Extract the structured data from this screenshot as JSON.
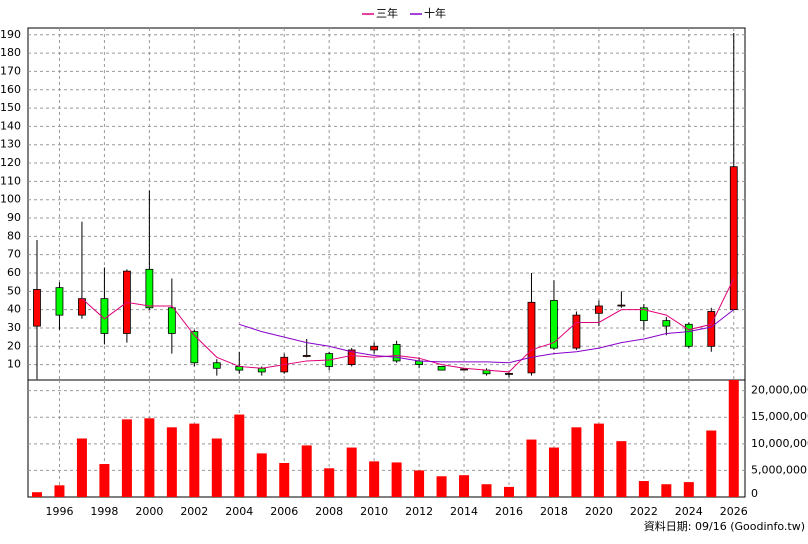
{
  "chart_data": [
    {
      "type": "candlestick",
      "x": [
        1995,
        1996,
        1997,
        1998,
        1999,
        2000,
        2001,
        2002,
        2003,
        2004,
        2005,
        2006,
        2007,
        2008,
        2009,
        2010,
        2011,
        2012,
        2013,
        2014,
        2015,
        2016,
        2017,
        2018,
        2019,
        2020,
        2021,
        2022,
        2023,
        2024,
        2025,
        2026
      ],
      "open": [
        31,
        52,
        37,
        46,
        27,
        62,
        41,
        28,
        11,
        9,
        8,
        6,
        14.5,
        16,
        10,
        18,
        21,
        12,
        9,
        7.5,
        7,
        5,
        5.5,
        45,
        19,
        38,
        42,
        41,
        34,
        32,
        20,
        40
      ],
      "high": [
        78,
        55,
        88,
        63,
        62,
        105,
        57,
        29,
        13,
        17,
        9,
        16,
        24,
        17,
        19,
        22,
        23,
        14,
        9,
        8,
        8,
        6,
        60,
        56,
        39,
        45,
        50,
        43,
        36,
        33,
        41,
        191
      ],
      "low": [
        2,
        29,
        35,
        21,
        22,
        40,
        16,
        9,
        4,
        5,
        4,
        5,
        14,
        7,
        9,
        16,
        11,
        8,
        7,
        7,
        4,
        3,
        4,
        18,
        18,
        31,
        41,
        29,
        26,
        19,
        17,
        40
      ],
      "close": [
        51,
        37,
        46,
        27,
        61,
        41,
        27,
        11,
        8,
        7,
        6,
        14,
        15,
        9,
        18,
        20,
        12,
        10,
        7,
        7.6,
        5,
        5.2,
        44,
        19,
        37,
        42,
        42.5,
        34,
        31,
        20,
        39,
        118
      ],
      "up_color": "#ff0000",
      "down_color": "#00ff00",
      "series": [
        {
          "name": "三年",
          "color": "#e0007a",
          "values": [
            null,
            null,
            46,
            35,
            44,
            42,
            42,
            26,
            14,
            9,
            8,
            10,
            12,
            12.5,
            15,
            14,
            15,
            13.5,
            10,
            8,
            7,
            6,
            18,
            22,
            33,
            33,
            40,
            40,
            37,
            29,
            32,
            57
          ]
        },
        {
          "name": "十年",
          "color": "#8800cc",
          "values": [
            null,
            null,
            null,
            null,
            null,
            null,
            null,
            null,
            null,
            32,
            28,
            25,
            22,
            20,
            17,
            15,
            14,
            12,
            11.5,
            11.5,
            11.5,
            11,
            14,
            16,
            17,
            19,
            22,
            24,
            27,
            28,
            30.5,
            40
          ]
        }
      ],
      "xlim": [
        1994.6,
        2026.5
      ],
      "xticks": [
        1996,
        1998,
        2000,
        2002,
        2004,
        2006,
        2008,
        2010,
        2012,
        2014,
        2016,
        2018,
        2020,
        2022,
        2024,
        2026
      ],
      "ylim": [
        1.6,
        193.7
      ],
      "yticks": [
        10,
        20,
        30,
        40,
        50,
        60,
        70,
        80,
        90,
        100,
        110,
        120,
        130,
        140,
        150,
        160,
        170,
        180,
        190
      ],
      "grid": true
    },
    {
      "type": "bar",
      "x": [
        1995,
        1996,
        1997,
        1998,
        1999,
        2000,
        2001,
        2002,
        2003,
        2004,
        2005,
        2006,
        2007,
        2008,
        2009,
        2010,
        2011,
        2012,
        2013,
        2014,
        2015,
        2016,
        2017,
        2018,
        2019,
        2020,
        2021,
        2022,
        2023,
        2024,
        2025,
        2026
      ],
      "values": [
        900000,
        2200000,
        11000000,
        6200000,
        14600000,
        14800000,
        13100000,
        13800000,
        11000000,
        15500000,
        8200000,
        6400000,
        9700000,
        5400000,
        9300000,
        6700000,
        6500000,
        5000000,
        3900000,
        4100000,
        2400000,
        1900000,
        10800000,
        9300000,
        13100000,
        13800000,
        10500000,
        3000000,
        2400000,
        2800000,
        12500000,
        22000000
      ],
      "color": "#ff0000",
      "xlim": [
        1994.6,
        2026.5
      ],
      "xticks": [
        1996,
        1998,
        2000,
        2002,
        2004,
        2006,
        2008,
        2010,
        2012,
        2014,
        2016,
        2018,
        2020,
        2022,
        2024,
        2026
      ],
      "ylim": [
        0,
        22000000
      ],
      "yticks": [
        0,
        {
          "value": 5000000,
          "label": "5,000,000"
        },
        {
          "value": 10000000,
          "label": "10,000,000"
        },
        {
          "value": 15000000,
          "label": "15,000,000"
        },
        {
          "value": 20000000,
          "label": "20,000,000"
        }
      ],
      "grid": true,
      "annotation": "資料日期: 09/16  (Goodinfo.tw)"
    }
  ]
}
